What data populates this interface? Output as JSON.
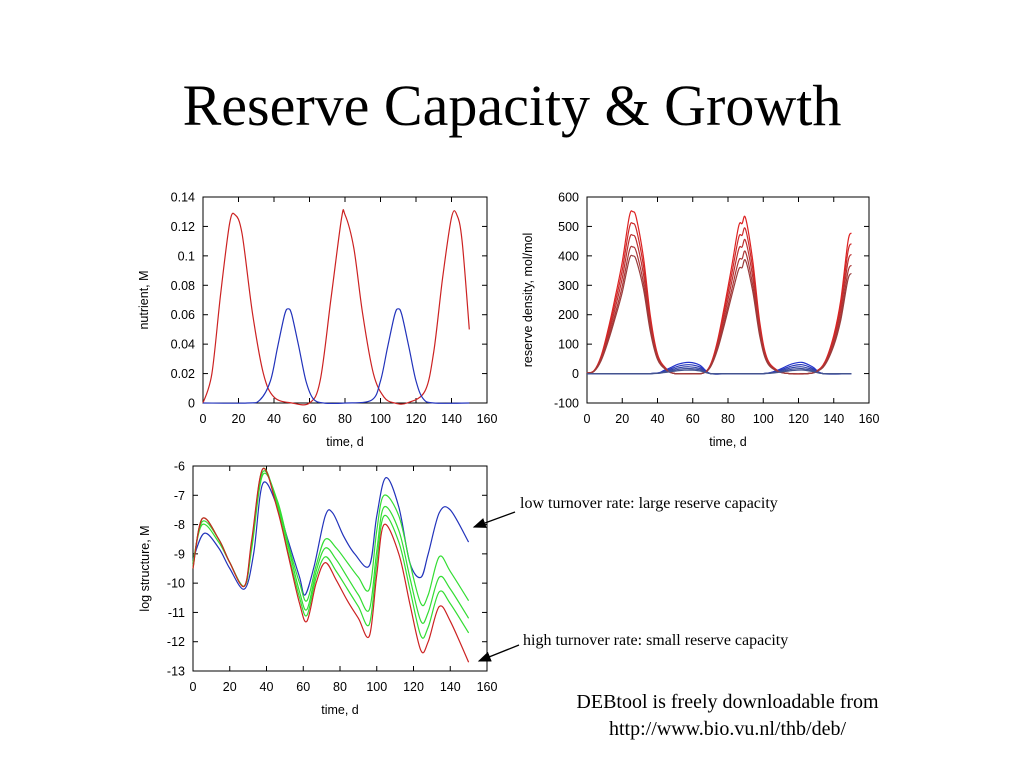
{
  "title": "Reserve Capacity & Growth",
  "colors": {
    "red": "#cc2222",
    "blue": "#2233bb",
    "green": "#33dd33"
  },
  "annotations": {
    "low": "low turnover rate: large reserve capacity",
    "high": "high turnover rate: small reserve capacity"
  },
  "footer": {
    "line1": "DEBtool is freely downloadable from",
    "line2": "http://www.bio.vu.nl/thb/deb/"
  },
  "chart_data": [
    {
      "type": "line",
      "xlabel": "time, d",
      "ylabel": "nutrient, M",
      "xlim": [
        0,
        160
      ],
      "ylim": [
        0,
        0.14
      ],
      "xticks": [
        "0",
        "20",
        "40",
        "60",
        "80",
        "100",
        "120",
        "140",
        "160"
      ],
      "yticks": [
        "0",
        "0.02",
        "0.04",
        "0.06",
        "0.08",
        "0.1",
        "0.12",
        "0.14"
      ],
      "grid": false,
      "series": [
        {
          "color": "red",
          "x": [
            0,
            5,
            10,
            15,
            18,
            22,
            28,
            34,
            40,
            50,
            60,
            66,
            72,
            78,
            80,
            85,
            90,
            96,
            102,
            108,
            115,
            125,
            130,
            135,
            140,
            143,
            146,
            150
          ],
          "y": [
            0,
            0.02,
            0.075,
            0.122,
            0.128,
            0.115,
            0.06,
            0.02,
            0.004,
            0,
            0,
            0.015,
            0.07,
            0.125,
            0.128,
            0.105,
            0.06,
            0.02,
            0.004,
            0,
            0,
            0.008,
            0.035,
            0.085,
            0.126,
            0.128,
            0.11,
            0.05
          ]
        },
        {
          "color": "blue",
          "x": [
            0,
            25,
            32,
            38,
            42,
            46,
            48,
            50,
            54,
            58,
            62,
            68,
            80,
            95,
            100,
            104,
            108,
            110,
            112,
            116,
            120,
            124,
            130,
            150
          ],
          "y": [
            0,
            0,
            0.002,
            0.015,
            0.038,
            0.06,
            0.064,
            0.06,
            0.038,
            0.015,
            0.003,
            0,
            0,
            0.002,
            0.015,
            0.038,
            0.06,
            0.064,
            0.06,
            0.038,
            0.015,
            0.003,
            0,
            0
          ]
        }
      ]
    },
    {
      "type": "line",
      "xlabel": "time, d",
      "ylabel": "reserve density, mol/mol",
      "xlim": [
        0,
        160
      ],
      "ylim": [
        -100,
        600
      ],
      "xticks": [
        "0",
        "20",
        "40",
        "60",
        "80",
        "100",
        "120",
        "140",
        "160"
      ],
      "yticks": [
        "-100",
        "0",
        "100",
        "200",
        "300",
        "400",
        "500",
        "600"
      ],
      "grid": false,
      "peak_x": [
        26,
        87,
        149
      ],
      "peak_heights": [
        550,
        510,
        470,
        430,
        400
      ],
      "blue_heights": [
        38,
        30,
        23,
        17,
        12
      ],
      "series_count": 5
    },
    {
      "type": "line",
      "xlabel": "time, d",
      "ylabel": "log structure, M",
      "xlim": [
        0,
        160
      ],
      "ylim": [
        -13,
        -6
      ],
      "xticks": [
        "0",
        "20",
        "40",
        "60",
        "80",
        "100",
        "120",
        "140",
        "160"
      ],
      "yticks": [
        "-6",
        "-7",
        "-8",
        "-9",
        "-10",
        "-11",
        "-12",
        "-13"
      ],
      "grid": false,
      "series": [
        {
          "color": "blue",
          "x": [
            0,
            6,
            14,
            20,
            28,
            33,
            38,
            46,
            52,
            58,
            61,
            66,
            72,
            76,
            82,
            88,
            96,
            100,
            105,
            112,
            118,
            124,
            128,
            134,
            140,
            150
          ],
          "y": [
            -9.2,
            -8.3,
            -8.8,
            -9.5,
            -10.2,
            -9.0,
            -6.6,
            -7.4,
            -8.6,
            -9.8,
            -10.4,
            -9.4,
            -7.7,
            -7.6,
            -8.4,
            -9.0,
            -9.4,
            -7.7,
            -6.4,
            -7.4,
            -9.3,
            -9.8,
            -9.0,
            -7.6,
            -7.5,
            -8.6
          ]
        },
        {
          "color": "green",
          "x": [
            0,
            5,
            14,
            20,
            28,
            32,
            38,
            46,
            52,
            58,
            62,
            67,
            72,
            78,
            84,
            90,
            96,
            100,
            104,
            112,
            118,
            124,
            128,
            134,
            140,
            150
          ],
          "y": [
            -9.3,
            -8.0,
            -8.6,
            -9.3,
            -10.1,
            -8.8,
            -6.3,
            -7.2,
            -8.7,
            -10.0,
            -10.6,
            -9.4,
            -8.5,
            -8.8,
            -9.3,
            -9.8,
            -10.2,
            -8.2,
            -7.0,
            -7.7,
            -9.3,
            -10.7,
            -10.4,
            -9.1,
            -9.6,
            -10.6
          ]
        },
        {
          "color": "green",
          "x": [
            0,
            5,
            14,
            20,
            28,
            32,
            38,
            46,
            52,
            58,
            62,
            67,
            72,
            78,
            84,
            90,
            96,
            100,
            104,
            112,
            118,
            124,
            128,
            134,
            140,
            150
          ],
          "y": [
            -9.4,
            -7.9,
            -8.5,
            -9.3,
            -10.1,
            -8.7,
            -6.2,
            -7.3,
            -8.8,
            -10.3,
            -10.9,
            -9.6,
            -8.8,
            -9.2,
            -9.8,
            -10.4,
            -10.9,
            -8.9,
            -7.4,
            -8.2,
            -9.8,
            -11.3,
            -11.0,
            -9.8,
            -10.2,
            -11.2
          ]
        },
        {
          "color": "green",
          "x": [
            0,
            5,
            14,
            20,
            28,
            32,
            38,
            46,
            52,
            58,
            62,
            67,
            72,
            78,
            84,
            90,
            96,
            100,
            104,
            112,
            118,
            124,
            128,
            134,
            140,
            150
          ],
          "y": [
            -9.5,
            -7.8,
            -8.5,
            -9.3,
            -10.1,
            -8.6,
            -6.1,
            -7.4,
            -9.0,
            -10.5,
            -11.1,
            -9.8,
            -9.1,
            -9.6,
            -10.2,
            -10.8,
            -11.4,
            -9.3,
            -7.7,
            -8.6,
            -10.2,
            -11.8,
            -11.5,
            -10.3,
            -10.7,
            -11.7
          ]
        },
        {
          "color": "red",
          "x": [
            0,
            5,
            14,
            20,
            28,
            32,
            38,
            46,
            52,
            58,
            62,
            67,
            72,
            78,
            84,
            90,
            96,
            100,
            104,
            112,
            118,
            124,
            128,
            134,
            140,
            150
          ],
          "y": [
            -9.5,
            -7.8,
            -8.5,
            -9.3,
            -10.1,
            -8.5,
            -6.1,
            -7.5,
            -9.1,
            -10.7,
            -11.3,
            -10.0,
            -9.3,
            -9.9,
            -10.6,
            -11.2,
            -11.8,
            -9.7,
            -8.0,
            -9.0,
            -10.7,
            -12.3,
            -12.0,
            -10.8,
            -11.3,
            -12.7
          ]
        }
      ]
    }
  ]
}
